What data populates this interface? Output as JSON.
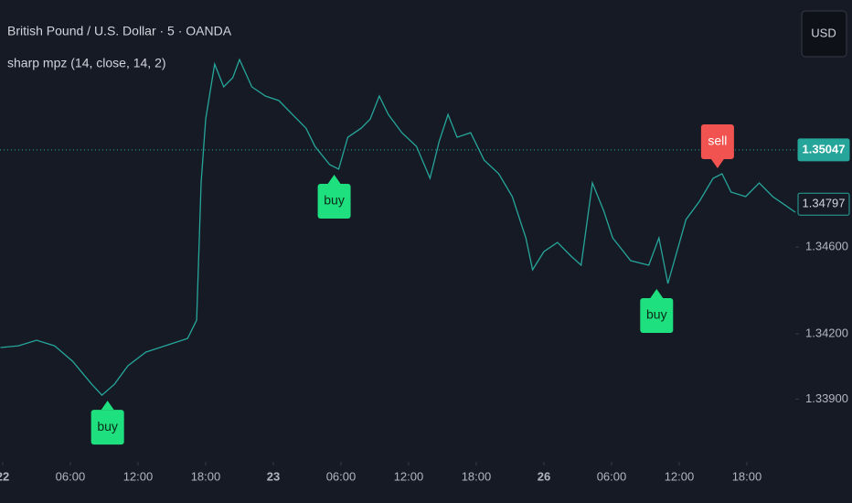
{
  "header": {
    "title": "British Pound / U.S. Dollar · 5 · OANDA",
    "indicator": "sharp mpz (14, close, 14, 2)",
    "currency_button": "USD"
  },
  "chart_data": {
    "type": "line",
    "x": [
      -0.2,
      1.4,
      3.0,
      4.6,
      6.2,
      7.9,
      8.8,
      9.9,
      11.1,
      12.7,
      14.4,
      16.4,
      17.2,
      17.6,
      18.0,
      18.8,
      19.6,
      20.4,
      21.0,
      22.1,
      23.3,
      24.5,
      25.7,
      26.9,
      27.7,
      29.0,
      29.8,
      30.6,
      31.8,
      32.6,
      33.4,
      34.2,
      35.4,
      36.7,
      37.9,
      38.7,
      39.5,
      40.3,
      41.5,
      42.7,
      44.0,
      45.2,
      46.4,
      47.0,
      48.0,
      49.2,
      50.4,
      51.3,
      52.3,
      53.3,
      54.1,
      55.7,
      57.3,
      58.2,
      59.0,
      59.8,
      60.6,
      61.8,
      63.0,
      63.8,
      64.6,
      65.9,
      67.1,
      68.3,
      69.5,
      70.3
    ],
    "series": [
      {
        "color": "#26a69a",
        "values": [
          1.34137,
          1.34145,
          1.34171,
          1.34145,
          1.34074,
          1.33968,
          1.33918,
          1.33968,
          1.34053,
          1.34116,
          1.34145,
          1.34179,
          1.34263,
          1.34895,
          1.35189,
          1.35442,
          1.35337,
          1.35379,
          1.35463,
          1.35337,
          1.35295,
          1.35274,
          1.3521,
          1.35147,
          1.35063,
          1.34979,
          1.34958,
          1.35105,
          1.35147,
          1.35189,
          1.35295,
          1.3521,
          1.35126,
          1.35063,
          1.34916,
          1.35084,
          1.3521,
          1.35105,
          1.35126,
          1.35,
          1.34937,
          1.34832,
          1.34642,
          1.34495,
          1.34579,
          1.34621,
          1.34558,
          1.34516,
          1.34895,
          1.34768,
          1.34642,
          1.34537,
          1.34516,
          1.34642,
          1.34432,
          1.34579,
          1.34726,
          1.34811,
          1.34916,
          1.34937,
          1.34853,
          1.34832,
          1.34895,
          1.34832,
          1.34789,
          1.3476
        ]
      }
    ],
    "xlim": [
      -0.24,
      70.3
    ],
    "xticks": [
      {
        "value": 0,
        "label": "22"
      },
      {
        "value": 6,
        "label": "06:00"
      },
      {
        "value": 12,
        "label": "12:00"
      },
      {
        "value": 18,
        "label": "18:00"
      },
      {
        "value": 24,
        "label": "23"
      },
      {
        "value": 30,
        "label": "06:00"
      },
      {
        "value": 36,
        "label": "12:00"
      },
      {
        "value": 42,
        "label": "18:00"
      },
      {
        "value": 48,
        "label": "26"
      },
      {
        "value": 54,
        "label": "06:00"
      },
      {
        "value": 60,
        "label": "12:00"
      },
      {
        "value": 66,
        "label": "18:00"
      }
    ],
    "ylim": [
      1.33632,
      1.35737
    ],
    "yticks": [
      {
        "value": 1.339,
        "label": "1.33900"
      },
      {
        "value": 1.342,
        "label": "1.34200"
      },
      {
        "value": 1.346,
        "label": "1.34600"
      }
    ],
    "price_labels": [
      {
        "value": 1.35047,
        "color": "#26a69a",
        "filled": true
      },
      {
        "value": 1.34797,
        "color": "#26a69a",
        "filled": false
      }
    ],
    "signals": [
      {
        "label": "buy",
        "x": 9.3,
        "y": 1.33918,
        "color": "#1fe07e"
      },
      {
        "label": "buy",
        "x": 29.4,
        "y": 1.34958,
        "color": "#1fe07e"
      },
      {
        "label": "buy",
        "x": 58.0,
        "y": 1.34432,
        "color": "#1fe07e"
      },
      {
        "label": "sell",
        "x": 63.4,
        "y": 1.34937,
        "color": "#f05350"
      }
    ]
  }
}
